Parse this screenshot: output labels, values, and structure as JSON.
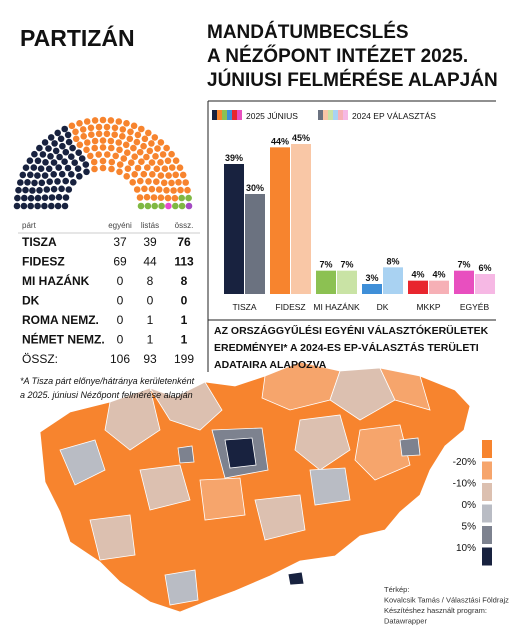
{
  "brand": "PARTIZÁN",
  "title": [
    "MANDÁTUMBECSLÉS",
    "A NÉZŐPONT INTÉZET 2025.",
    "JÚNIUSI FELMÉRÉSE ALAPJÁN"
  ],
  "chart_data": [
    {
      "type": "parliament",
      "columns": [
        "párt",
        "egyéni",
        "listás",
        "össz."
      ],
      "rows": [
        {
          "name": "TISZA",
          "color": "#18223f",
          "values": [
            37,
            39,
            76
          ]
        },
        {
          "name": "FIDESZ",
          "color": "#f7842e",
          "values": [
            69,
            44,
            113
          ]
        },
        {
          "name": "MI HAZÁNK",
          "color": "#7fb843",
          "values": [
            0,
            8,
            8
          ]
        },
        {
          "name": "DK",
          "color": "#3f8fd8",
          "values": [
            0,
            0,
            0
          ]
        },
        {
          "name": "ROMA NEMZ.",
          "color": "#a34bc2",
          "values": [
            0,
            1,
            1
          ]
        },
        {
          "name": "NÉMET NEMZ.",
          "color": "#e64ad0",
          "values": [
            0,
            1,
            1
          ]
        }
      ],
      "total": {
        "name": "ÖSSZ:",
        "values": [
          106,
          93,
          199
        ]
      }
    },
    {
      "type": "bar",
      "categories": [
        "TISZA",
        "FIDESZ",
        "MI HAZÁNK",
        "DK",
        "MKKP",
        "EGYÉB"
      ],
      "series": [
        {
          "name": "2025 JÚNIUS",
          "colors": [
            "#18223f",
            "#f7842e",
            "#8cc152",
            "#3f8fd8",
            "#e8262e",
            "#e84fbf"
          ],
          "values": [
            39,
            44,
            7,
            3,
            4,
            7
          ],
          "value_labels": [
            "39%",
            "44%",
            "7%",
            "3%",
            "4%",
            "7%"
          ]
        },
        {
          "name": "2024 EP VÁLASZTÁS",
          "colors": [
            "#6b7280",
            "#f9c7a6",
            "#c9e3a5",
            "#a9d2f2",
            "#f6b0b6",
            "#f6b8e4"
          ],
          "values": [
            30,
            45,
            7,
            8,
            4,
            6
          ],
          "value_labels": [
            "30%",
            "45%",
            "7%",
            "8%",
            "4%",
            "6%"
          ]
        }
      ]
    }
  ],
  "map": {
    "title": [
      "AZ ORSZÁGGYŰLÉSI EGYÉNI VÁLASZTÓKERÜLETEK",
      "EREDMÉNYEI* A 2024-ES EP-VÁLASZTÁS TERÜLETI",
      "ADATAIRA ALAPOZVA"
    ],
    "footnote": [
      "*A Tisza párt előnye/hátránya kerületenként",
      "a 2025. júniusi Nézőpont felmérése alapján"
    ],
    "legend_colors": [
      "#f7842e",
      "#f6a56c",
      "#dcc0b0",
      "#b9bcc4",
      "#7d828f",
      "#18223f"
    ],
    "legend_labels": [
      "-20%",
      "-10%",
      "0%",
      "5%",
      "10%"
    ],
    "credits": [
      "Térkép:",
      "Kovalcsik Tamás / Választási Földrajz",
      "Készítéshez használt program:",
      "Datawrapper"
    ]
  }
}
